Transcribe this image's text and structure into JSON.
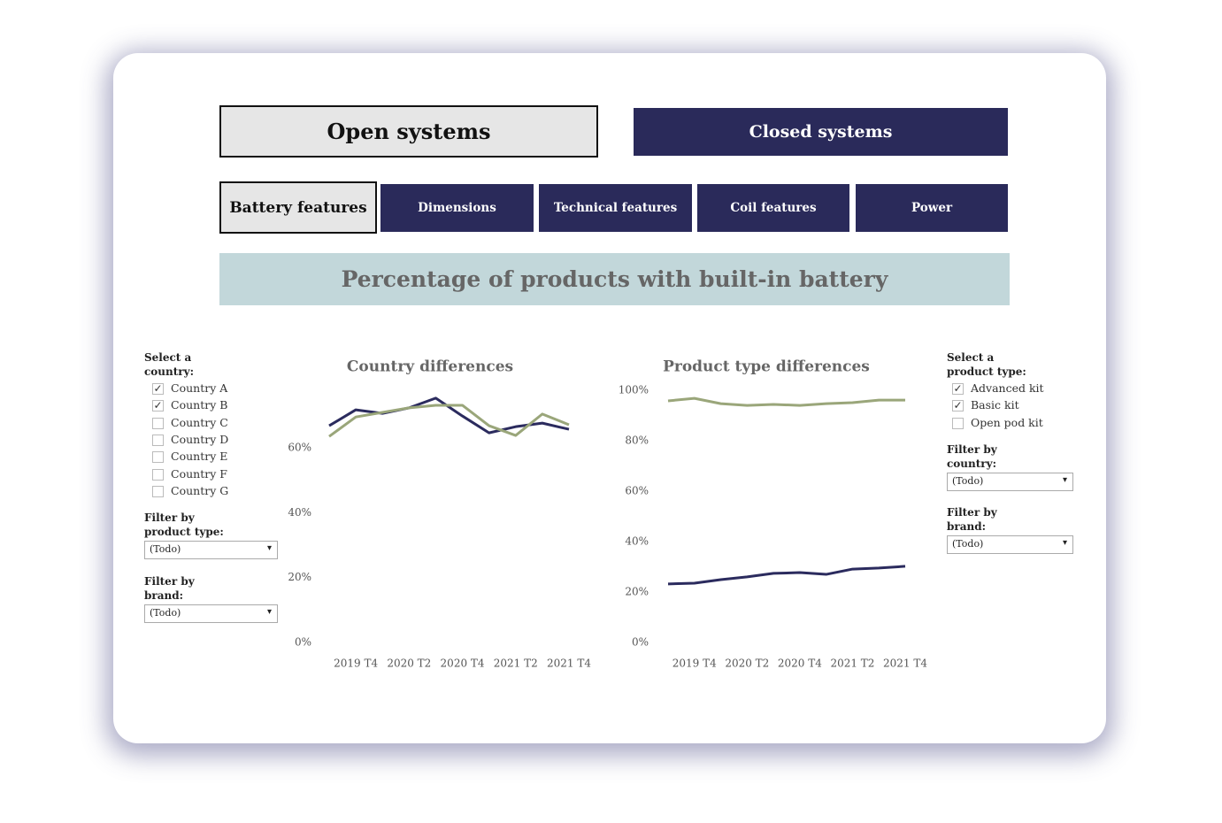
{
  "tabs_top": [
    {
      "label": "Open systems",
      "active": true
    },
    {
      "label": "Closed systems",
      "active": false
    }
  ],
  "tabs_sub": [
    {
      "label": "Battery features",
      "active": true
    },
    {
      "label": "Dimensions",
      "active": false
    },
    {
      "label": "Technical features",
      "active": false
    },
    {
      "label": "Coil features",
      "active": false
    },
    {
      "label": "Power",
      "active": false
    }
  ],
  "banner": "Percentage of products with built-in battery",
  "left_panel": {
    "checklist_label": "Select a country:",
    "options": [
      {
        "label": "Country A",
        "checked": true
      },
      {
        "label": "Country B",
        "checked": true
      },
      {
        "label": "Country C",
        "checked": false
      },
      {
        "label": "Country D",
        "checked": false
      },
      {
        "label": "Country E",
        "checked": false
      },
      {
        "label": "Country F",
        "checked": false
      },
      {
        "label": "Country G",
        "checked": false
      }
    ],
    "filters": [
      {
        "label": "Filter by product type:",
        "value": "(Todo)"
      },
      {
        "label": "Filter by brand:",
        "value": "(Todo)"
      }
    ]
  },
  "right_panel": {
    "checklist_label": "Select a product type:",
    "options": [
      {
        "label": "Advanced kit",
        "checked": true
      },
      {
        "label": "Basic kit",
        "checked": true
      },
      {
        "label": "Open pod kit",
        "checked": false
      }
    ],
    "filters": [
      {
        "label": "Filter by country:",
        "value": "(Todo)"
      },
      {
        "label": "Filter by brand:",
        "value": "(Todo)"
      }
    ]
  },
  "chart_data": [
    {
      "type": "line",
      "title": "Country differences",
      "categories": [
        null,
        "2019 T4",
        null,
        "2020 T2",
        null,
        "2020 T4",
        null,
        "2021 T2",
        null,
        "2021 T4"
      ],
      "series": [
        {
          "name": "Country A",
          "color": "#2b2b5e",
          "values": [
            66.8,
            71.7,
            70.6,
            72.3,
            75.3,
            69.8,
            64.6,
            66.5,
            67.6,
            65.7
          ]
        },
        {
          "name": "Country B",
          "color": "#9aa67a",
          "values": [
            63.5,
            69.5,
            70.9,
            72.3,
            73.1,
            73.1,
            66.8,
            63.8,
            70.4,
            67.1
          ]
        }
      ],
      "ylim": [
        0,
        78
      ],
      "yticks": [
        {
          "value": 0,
          "label": "0%"
        },
        {
          "value": 20,
          "label": "20%"
        },
        {
          "value": 40,
          "label": "40%"
        },
        {
          "value": 60,
          "label": "60%"
        }
      ],
      "grid": false
    },
    {
      "type": "line",
      "title": "Product type differences",
      "categories": [
        null,
        "2019 T4",
        null,
        "2020 T2",
        null,
        "2020 T4",
        null,
        "2021 T2",
        null,
        "2021 T4"
      ],
      "series": [
        {
          "name": "Advanced kit",
          "color": "#9aa67a",
          "values": [
            95.8,
            96.8,
            94.7,
            94.0,
            94.4,
            94.0,
            94.7,
            95.1,
            96.1,
            96.1
          ]
        },
        {
          "name": "Basic kit",
          "color": "#2b2b5e",
          "values": [
            23.2,
            23.5,
            24.9,
            26.0,
            27.4,
            27.7,
            27.0,
            29.1,
            29.5,
            30.2
          ]
        }
      ],
      "ylim": [
        0,
        100
      ],
      "yticks": [
        {
          "value": 0,
          "label": "0%"
        },
        {
          "value": 20,
          "label": "20%"
        },
        {
          "value": 40,
          "label": "40%"
        },
        {
          "value": 60,
          "label": "60%"
        },
        {
          "value": 80,
          "label": "80%"
        },
        {
          "value": 100,
          "label": "100%"
        }
      ],
      "grid": false
    }
  ]
}
